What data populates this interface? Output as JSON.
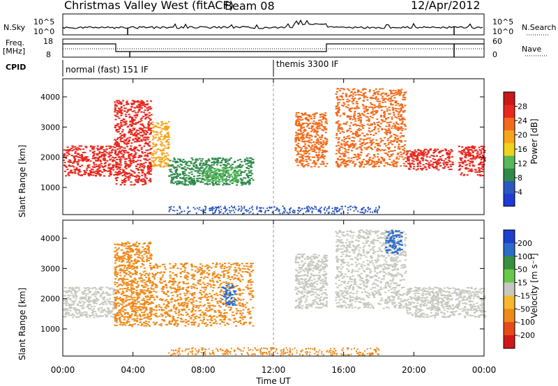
{
  "header": {
    "station": "Christmas Valley West (fitACF)",
    "beam": "Beam 08",
    "date": "12/Apr/2012"
  },
  "noise_panel": {
    "left_label": "N.Sky",
    "right_label": "N.Search",
    "left_ticks": [
      "10^5",
      "10^0"
    ],
    "right_ticks": [
      "10^5",
      "10^0"
    ]
  },
  "freq_panel": {
    "left_label_line1": "Freq.",
    "left_label_line2": "[MHz]",
    "right_label": "Nave",
    "left_ticks": [
      "18",
      "8"
    ],
    "right_ticks": [
      "60",
      "0"
    ]
  },
  "cpid": {
    "label": "CPID",
    "modes": [
      {
        "name": "normal (fast) 151 IF",
        "start_hour": 0
      },
      {
        "name": "themis 3300 IF",
        "start_hour": 12
      }
    ]
  },
  "colors": {
    "power": [
      "#1f3ad6",
      "#2b58c0",
      "#2f8a4a",
      "#57b85a",
      "#f0d21e",
      "#f7a51e",
      "#f26a1a",
      "#e8281e",
      "#c81818"
    ],
    "velocity": [
      "#1c3fd0",
      "#2b6cc9",
      "#3a8f3e",
      "#69c84a",
      "#c8c8c0",
      "#f6b82c",
      "#ee8a1a",
      "#e64a18",
      "#d01818"
    ],
    "ground_scatter": "#c8c8c0"
  },
  "chart_data": [
    {
      "type": "heatmap",
      "name": "power",
      "ylabel": "Slant Range [km]",
      "ylim": [
        100,
        4600
      ],
      "yticks": [
        1000,
        2000,
        3000,
        4000
      ],
      "xlim": [
        0,
        24
      ],
      "colorbar": {
        "label": "Power [dB]",
        "ticks": [
          4,
          8,
          12,
          16,
          20,
          24,
          28
        ],
        "range": [
          0,
          32
        ]
      },
      "regions": [
        {
          "t": [
            0.0,
            2.9
          ],
          "r": [
            1400,
            2400
          ],
          "value": 28
        },
        {
          "t": [
            2.9,
            5.0
          ],
          "r": [
            1100,
            3900
          ],
          "value": 26
        },
        {
          "t": [
            5.0,
            6.0
          ],
          "r": [
            1700,
            3200
          ],
          "value": 20
        },
        {
          "t": [
            6.0,
            10.8
          ],
          "r": [
            1100,
            2000
          ],
          "value": 10
        },
        {
          "t": [
            8.0,
            10.0
          ],
          "r": [
            1200,
            1700
          ],
          "value": 14
        },
        {
          "t": [
            13.2,
            15.0
          ],
          "r": [
            1700,
            3500
          ],
          "value": 22
        },
        {
          "t": [
            15.5,
            19.5
          ],
          "r": [
            1700,
            4300
          ],
          "value": 22
        },
        {
          "t": [
            19.5,
            22.2
          ],
          "r": [
            1600,
            2300
          ],
          "value": 28
        },
        {
          "t": [
            22.5,
            24.0
          ],
          "r": [
            1400,
            2400
          ],
          "value": 27
        }
      ]
    },
    {
      "type": "heatmap",
      "name": "velocity",
      "ylabel": "Slant Range [km]",
      "xlabel": "Time UT",
      "ylim": [
        100,
        4600
      ],
      "yticks": [
        1000,
        2000,
        3000,
        4000
      ],
      "xlim": [
        0,
        24
      ],
      "xticks": [
        "00:00",
        "04:00",
        "08:00",
        "12:00",
        "16:00",
        "20:00",
        "00:00"
      ],
      "colorbar": {
        "label": "Velocity [m s⁻¹]",
        "ticks": [
          200,
          100,
          50,
          15,
          -15,
          -50,
          -100,
          -200
        ]
      },
      "regions": [
        {
          "t": [
            0.0,
            2.9
          ],
          "r": [
            1400,
            2400
          ],
          "value": 0
        },
        {
          "t": [
            2.9,
            5.0
          ],
          "r": [
            1100,
            3900
          ],
          "value": -60
        },
        {
          "t": [
            5.0,
            10.8
          ],
          "r": [
            1100,
            3200
          ],
          "value": -70
        },
        {
          "t": [
            9.0,
            9.8
          ],
          "r": [
            1800,
            2500
          ],
          "value": 120
        },
        {
          "t": [
            13.2,
            15.0
          ],
          "r": [
            1700,
            3500
          ],
          "value": 0
        },
        {
          "t": [
            15.5,
            19.5
          ],
          "r": [
            1700,
            4300
          ],
          "value": 0
        },
        {
          "t": [
            18.3,
            19.3
          ],
          "r": [
            3500,
            4300
          ],
          "value": 180
        },
        {
          "t": [
            19.5,
            24.0
          ],
          "r": [
            1400,
            2400
          ],
          "value": 0
        }
      ]
    }
  ]
}
